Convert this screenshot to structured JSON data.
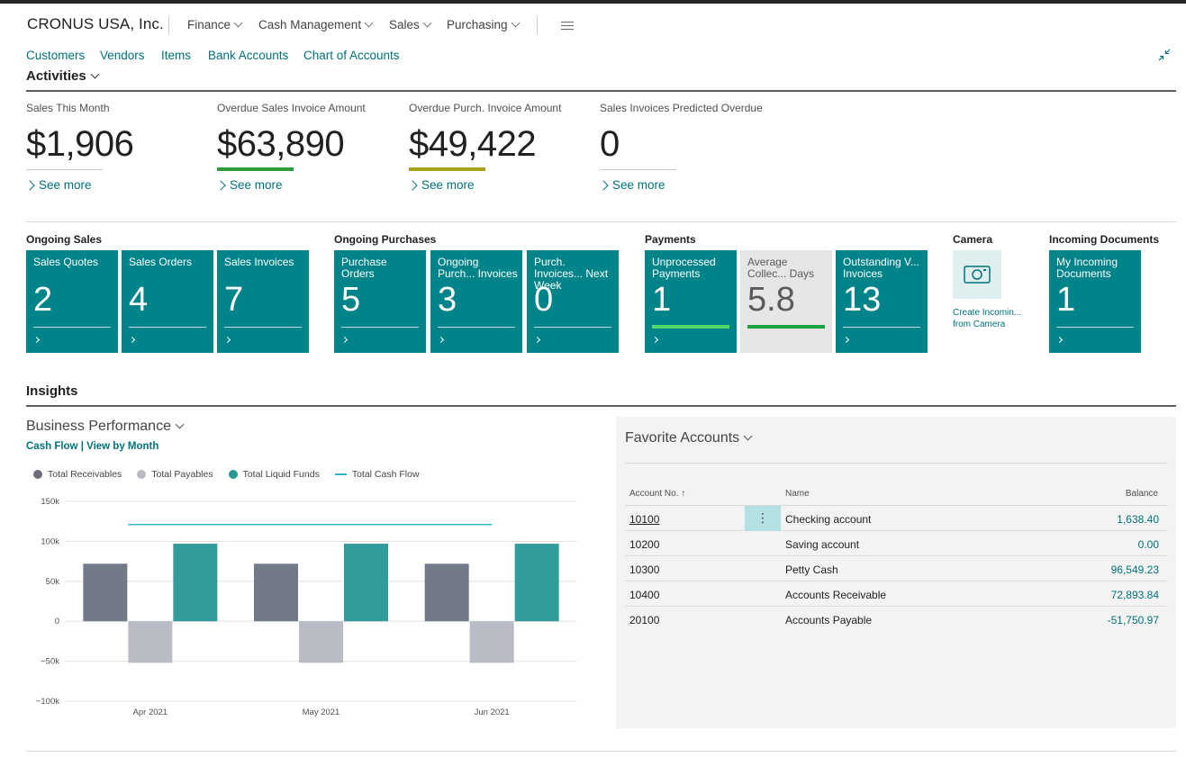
{
  "header": {
    "company": "CRONUS USA, Inc.",
    "menus": [
      "Finance",
      "Cash Management",
      "Sales",
      "Purchasing"
    ]
  },
  "nav": {
    "links": [
      "Customers",
      "Vendors",
      "Items",
      "Bank Accounts",
      "Chart of Accounts"
    ]
  },
  "activities": {
    "title": "Activities",
    "kpis": [
      {
        "label": "Sales This Month",
        "value": "$1,906",
        "see_more": "See more",
        "indicator_color": ""
      },
      {
        "label": "Overdue Sales Invoice Amount",
        "value": "$63,890",
        "see_more": "See more",
        "indicator_color": "#2e9c3a"
      },
      {
        "label": "Overdue Purch. Invoice Amount",
        "value": "$49,422",
        "see_more": "See more",
        "indicator_color": "#a6a21a"
      },
      {
        "label": "Sales Invoices Predicted Overdue",
        "value": "0",
        "see_more": "See more",
        "indicator_color": ""
      }
    ]
  },
  "cues": {
    "ongoing_sales": {
      "title": "Ongoing Sales",
      "tiles": [
        {
          "label": "Sales Quotes",
          "value": "2"
        },
        {
          "label": "Sales Orders",
          "value": "4"
        },
        {
          "label": "Sales Invoices",
          "value": "7"
        }
      ]
    },
    "ongoing_purchases": {
      "title": "Ongoing Purchases",
      "tiles": [
        {
          "label": "Purchase Orders",
          "value": "5"
        },
        {
          "label": "Ongoing Purch... Invoices",
          "value": "3"
        },
        {
          "label": "Purch. Invoices... Next Week",
          "value": "0"
        }
      ]
    },
    "payments": {
      "title": "Payments",
      "tiles": [
        {
          "label": "Unprocessed Payments",
          "value": "1"
        },
        {
          "label": "Average Collec... Days",
          "value": "5.8"
        },
        {
          "label": "Outstanding V... Invoices",
          "value": "13"
        }
      ]
    },
    "camera": {
      "title": "Camera",
      "action": "Create Incomin... from Camera"
    },
    "incoming_documents": {
      "title": "Incoming Documents",
      "tiles": [
        {
          "label": "My Incoming Documents",
          "value": "1"
        }
      ]
    }
  },
  "insights": {
    "title": "Insights",
    "business_performance": {
      "title": "Business Performance",
      "subtitle": "Cash Flow | View by Month"
    }
  },
  "chart_data": {
    "type": "bar",
    "categories": [
      "Apr 2021",
      "May 2021",
      "Jun 2021"
    ],
    "series": [
      {
        "name": "Total Receivables",
        "type": "bar",
        "color": "#737a87",
        "values": [
          72000,
          72000,
          72000
        ]
      },
      {
        "name": "Total Payables",
        "type": "bar",
        "color": "#b9bcc5",
        "values": [
          -52000,
          -52000,
          -52000
        ]
      },
      {
        "name": "Total Liquid Funds",
        "type": "bar",
        "color": "#319c9c",
        "values": [
          97000,
          97000,
          97000
        ]
      },
      {
        "name": "Total Cash Flow",
        "type": "line",
        "color": "#35b5c0",
        "values": [
          121000,
          121000,
          121000
        ]
      }
    ],
    "ylim": [
      -100000,
      150000
    ],
    "yticks": [
      150000,
      100000,
      50000,
      0,
      -50000,
      -100000
    ],
    "ytick_labels": [
      "150k",
      "100k",
      "50k",
      "0",
      "−50k",
      "−100k"
    ],
    "grid": true,
    "legend": "top-left"
  },
  "favorite_accounts": {
    "title": "Favorite Accounts",
    "columns": [
      "Account No. ↑",
      "Name",
      "Balance"
    ],
    "rows": [
      {
        "no": "10100",
        "name": "Checking account",
        "balance": "1,638.40"
      },
      {
        "no": "10200",
        "name": "Saving account",
        "balance": "0.00"
      },
      {
        "no": "10300",
        "name": "Petty Cash",
        "balance": "96,549.23"
      },
      {
        "no": "10400",
        "name": "Accounts Receivable",
        "balance": "72,893.84"
      },
      {
        "no": "20100",
        "name": "Accounts Payable",
        "balance": "-51,750.97"
      }
    ],
    "row_menu_icon": "⋮"
  }
}
